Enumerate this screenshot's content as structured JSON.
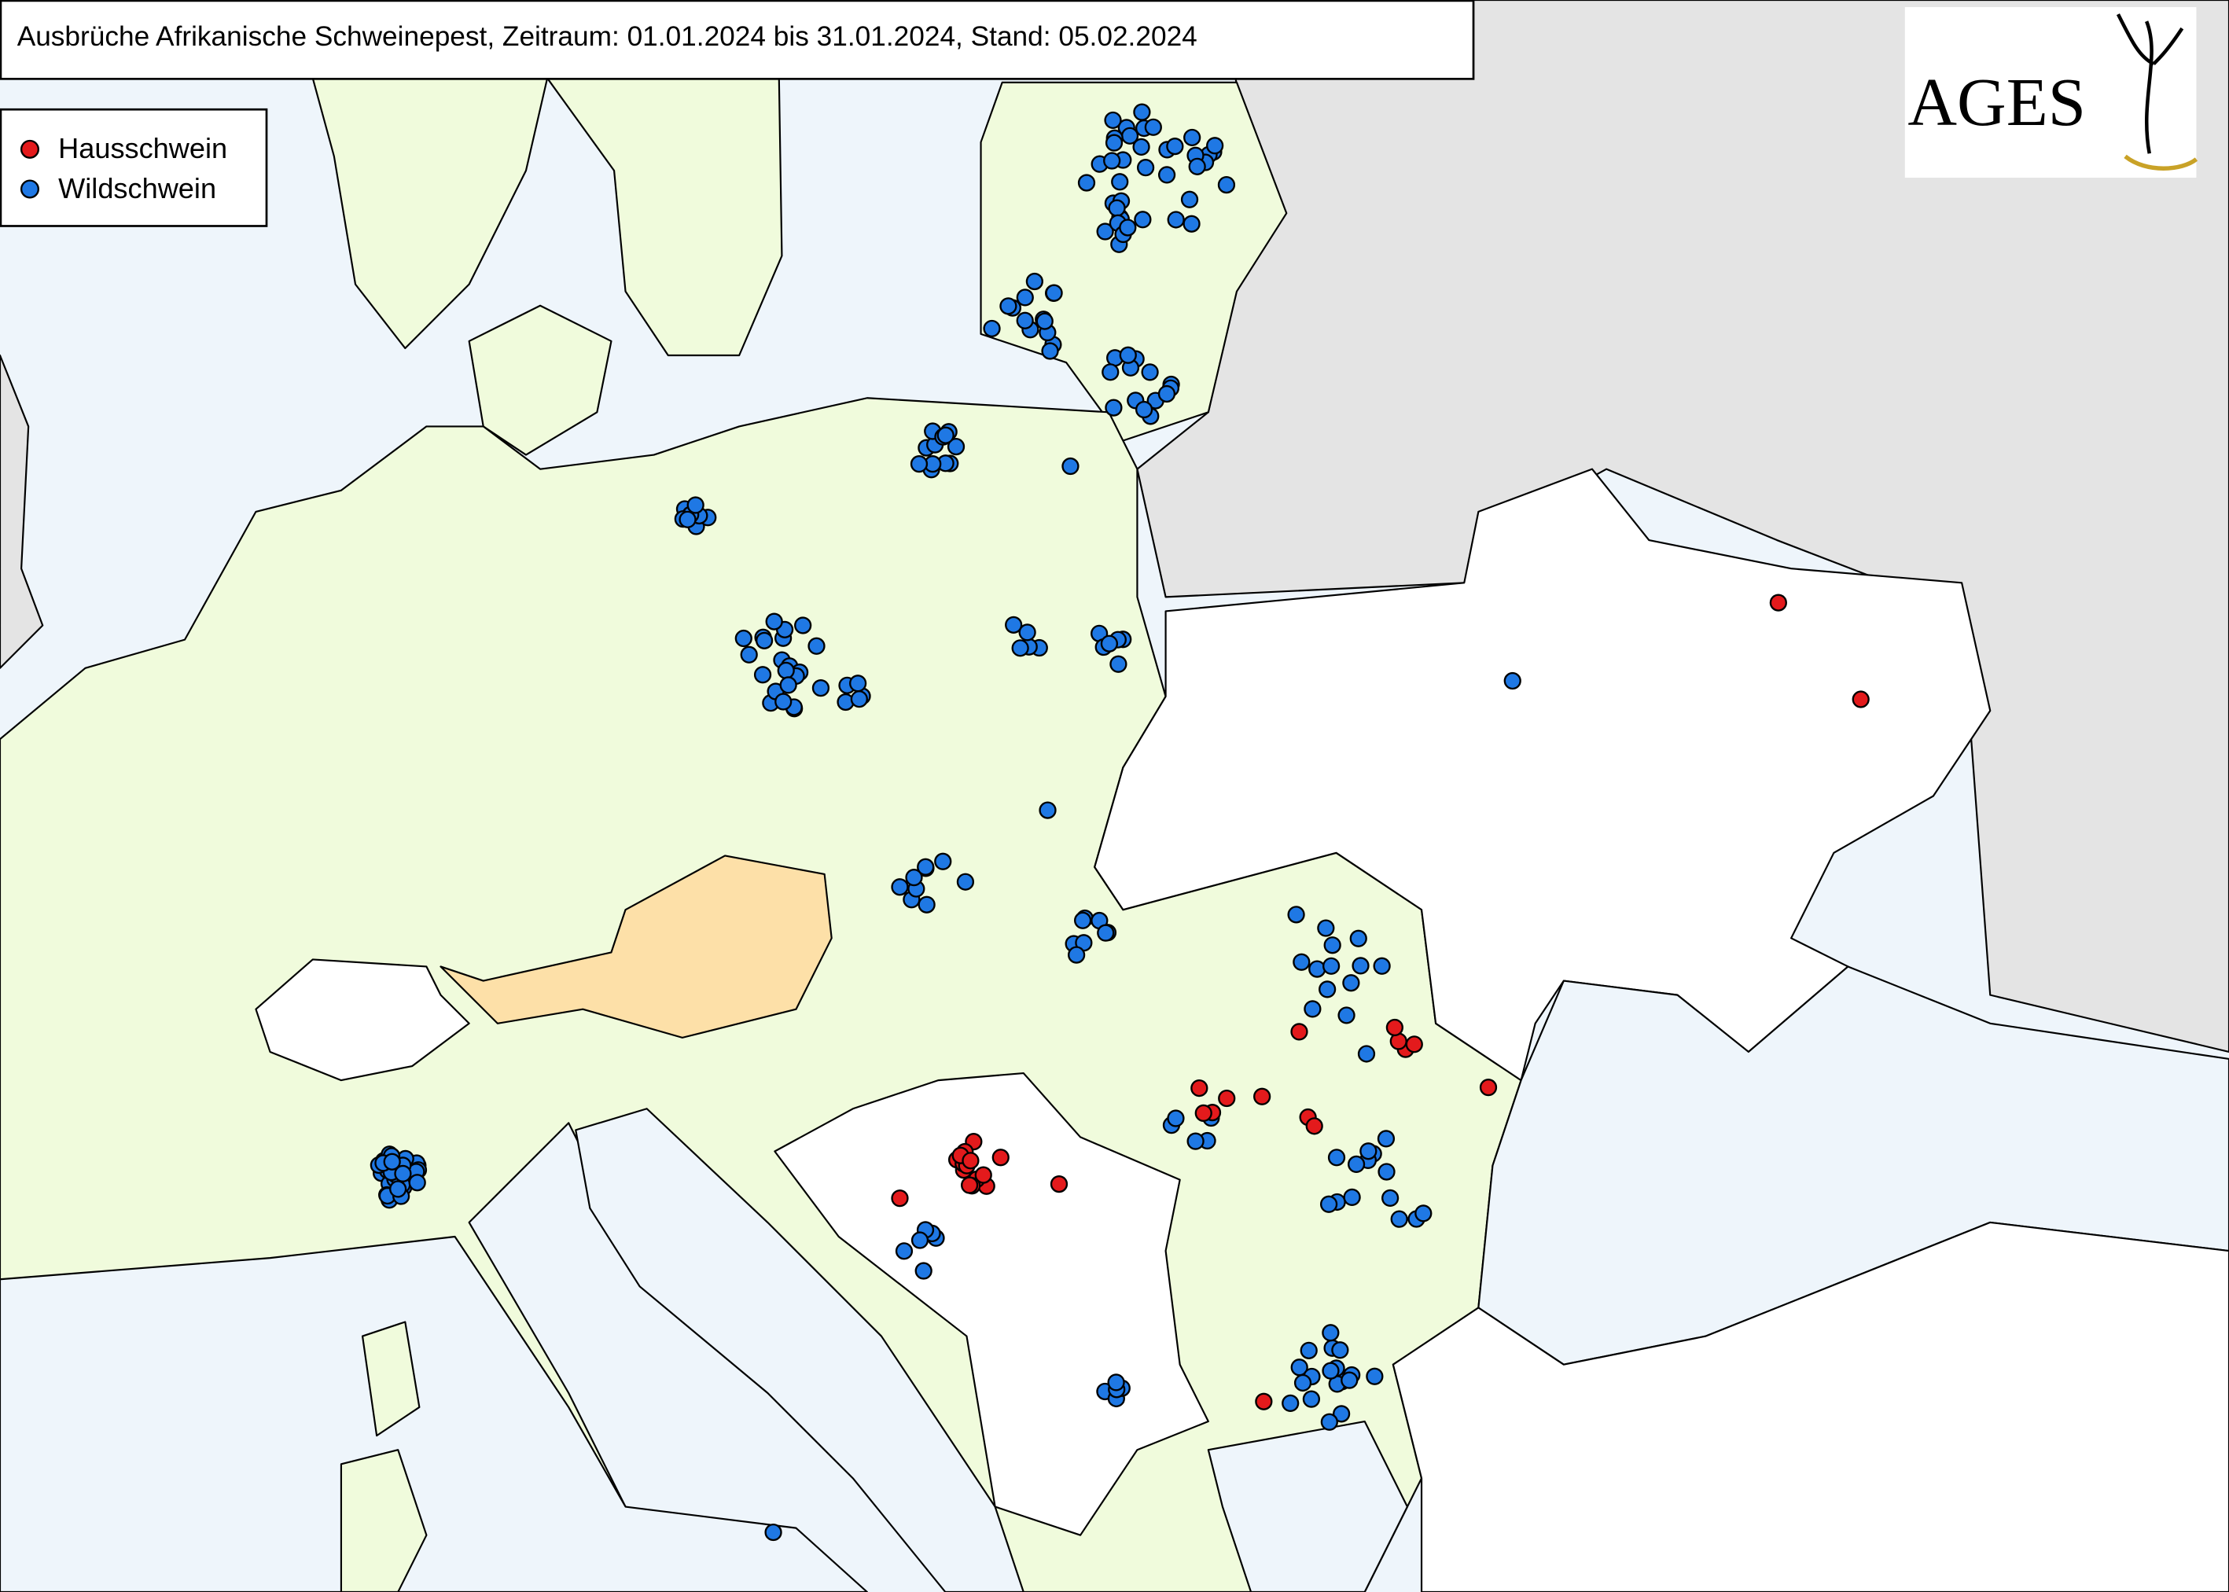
{
  "header": {
    "title": "Ausbrüche Afrikanische Schweinepest, Zeitraum: 01.01.2024 bis 31.01.2024, Stand: 05.02.2024"
  },
  "legend": {
    "items": [
      {
        "label": "Hausschwein",
        "color": "#e31a1c"
      },
      {
        "label": "Wildschwein",
        "color": "#1f78e4"
      }
    ]
  },
  "logo": {
    "text": "AGES"
  }
}
